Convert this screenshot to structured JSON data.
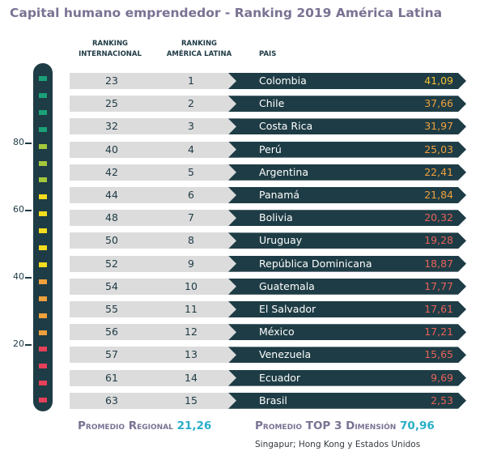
{
  "title": "Capital humano emprendedor - Ranking 2019 América Latina",
  "headers": {
    "ranking_internacional": "RANKING\nINTERNACIONAL",
    "ranking_america_latina": "RANKING\nAMÉRICA LATINA",
    "pais": "PAIS"
  },
  "colors": {
    "gauge_bg": "#1e3c45",
    "bar_dark": "#1e3c45",
    "bar_grey": "#dcdcdc",
    "score_yellow": "#f2c232",
    "score_orange": "#f0a03c",
    "score_red": "#e8625a",
    "accent": "#2aaec8",
    "title": "#7a7293"
  },
  "chart_data": {
    "type": "table",
    "gauge": {
      "range": [
        0,
        100
      ],
      "ticks": [
        80,
        60,
        40,
        20
      ],
      "dot_colors": [
        "#1aa178",
        "#1aa178",
        "#1aa178",
        "#1aa178",
        "#a4c83c",
        "#a4c83c",
        "#a4c83c",
        "#f4dc1e",
        "#f4dc1e",
        "#f4dc1e",
        "#f4dc1e",
        "#f4dc1e",
        "#f0a03c",
        "#f0a03c",
        "#f0a03c",
        "#f0a03c",
        "#e6405a",
        "#e6405a",
        "#e6405a",
        "#e6405a"
      ]
    },
    "rows": [
      {
        "intl": "23",
        "latam": "1",
        "country": "Colombia",
        "score": "41,09",
        "score_color": "#f2c232"
      },
      {
        "intl": "25",
        "latam": "2",
        "country": "Chile",
        "score": "37,66",
        "score_color": "#f0a03c"
      },
      {
        "intl": "32",
        "latam": "3",
        "country": "Costa Rica",
        "score": "31,97",
        "score_color": "#f0a03c"
      },
      {
        "intl": "40",
        "latam": "4",
        "country": "Perú",
        "score": "25,03",
        "score_color": "#f0a03c"
      },
      {
        "intl": "42",
        "latam": "5",
        "country": "Argentina",
        "score": "22,41",
        "score_color": "#f0a03c"
      },
      {
        "intl": "44",
        "latam": "6",
        "country": "Panamá",
        "score": "21,84",
        "score_color": "#f0a03c"
      },
      {
        "intl": "48",
        "latam": "7",
        "country": "Bolivia",
        "score": "20,32",
        "score_color": "#e8625a"
      },
      {
        "intl": "50",
        "latam": "8",
        "country": "Uruguay",
        "score": "19,28",
        "score_color": "#e8625a"
      },
      {
        "intl": "52",
        "latam": "9",
        "country": "República Dominicana",
        "score": "18,87",
        "score_color": "#e8625a"
      },
      {
        "intl": "54",
        "latam": "10",
        "country": "Guatemala",
        "score": "17,77",
        "score_color": "#e8625a"
      },
      {
        "intl": "55",
        "latam": "11",
        "country": "El Salvador",
        "score": "17,61",
        "score_color": "#e8625a"
      },
      {
        "intl": "56",
        "latam": "12",
        "country": "México",
        "score": "17,21",
        "score_color": "#e8625a"
      },
      {
        "intl": "57",
        "latam": "13",
        "country": "Venezuela",
        "score": "15,65",
        "score_color": "#e8625a"
      },
      {
        "intl": "61",
        "latam": "14",
        "country": "Ecuador",
        "score": "9,69",
        "score_color": "#e8625a"
      },
      {
        "intl": "63",
        "latam": "15",
        "country": "Brasil",
        "score": "2,53",
        "score_color": "#e8625a"
      }
    ]
  },
  "footer": {
    "regional_label": "Promedio Regional",
    "regional_value": "21,26",
    "top3_label": "Promedio TOP 3 Dimensión",
    "top3_value": "70,96",
    "top3_note": "Singapur; Hong Kong y Estados Unidos"
  }
}
